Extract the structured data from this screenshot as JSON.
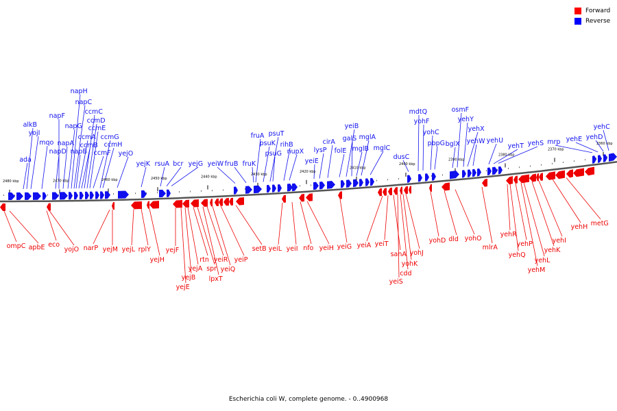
{
  "legend": {
    "forward": {
      "label": "Forward",
      "color": "#ff0000"
    },
    "reverse": {
      "label": "Reverse",
      "color": "#0000ff"
    }
  },
  "caption": "Escherichia coli W, complete genome. - 0..4900968",
  "strand_colors": {
    "forward": "#ee0000",
    "reverse": "#1010ee"
  },
  "backbone_color": "#555555",
  "ticks": [
    "2480 kbp",
    "2470 kbp",
    "2460 kbp",
    "2450 kbp",
    "2440 kbp",
    "2430 kbp",
    "2420 kbp",
    "2410 kbp",
    "2400 kbp",
    "2390 kbp",
    "2380 kbp",
    "2370 kbp",
    "2360 kbp"
  ],
  "reverse_genes": [
    "ada",
    "alkB",
    "yojI",
    "mqo",
    "napD",
    "napF",
    "napA",
    "napG",
    "napH",
    "napC",
    "napB",
    "ccmA",
    "ccmB",
    "ccmC",
    "ccmD",
    "ccmE",
    "ccmF",
    "ccmG",
    "ccmH",
    "yejO",
    "yejK",
    "rsuA",
    "bcr",
    "yejG",
    "yeiW",
    "fruB",
    "fruK",
    "fruA",
    "psuK",
    "psuT",
    "psuG",
    "rihB",
    "nupX",
    "yeiE",
    "lysP",
    "cirA",
    "folE",
    "yeiB",
    "galS",
    "mglB",
    "mglA",
    "mglC",
    "dusC",
    "mdtQ",
    "yohF",
    "yohC",
    "pbpG",
    "bglX",
    "osmF",
    "yehY",
    "yehX",
    "yehW",
    "yehU",
    "yehT",
    "yehS",
    "mrp",
    "yehE",
    "yehD",
    "yehC"
  ],
  "forward_genes": [
    "ompC",
    "apbE",
    "eco",
    "yojO",
    "narP",
    "yejM",
    "yejL",
    "rplY",
    "yejH",
    "yejF",
    "yejE",
    "yejB",
    "yejA",
    "rtn",
    "spr",
    "lpxT",
    "yeiR",
    "yeiQ",
    "yeiP",
    "setB",
    "yeiL",
    "yeiI",
    "nfo",
    "yeiH",
    "yeiG",
    "yeiA",
    "yeiT",
    "sanA",
    "yeiS",
    "cdd",
    "yohK",
    "yohJ",
    "yohD",
    "dld",
    "yohO",
    "mlrA",
    "yehR",
    "yehQ",
    "yehP",
    "yehM",
    "yehL",
    "yehK",
    "yehI",
    "yehH",
    "metG"
  ]
}
